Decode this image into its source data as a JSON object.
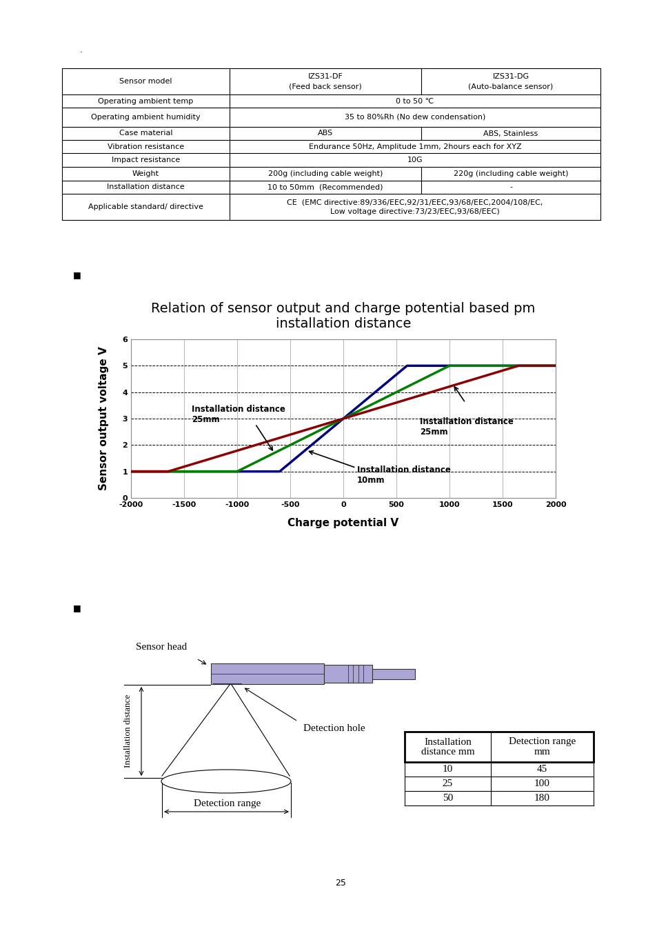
{
  "header_mark": ".",
  "spec_table": {
    "header": {
      "label": "Sensor model",
      "values": [
        "IZS31-DF\n(Feed back sensor)",
        "IZS31-DG\n(Auto-balance sensor)"
      ]
    },
    "rows": [
      {
        "label": "Operating ambient temp",
        "values": [
          "0 to 50 ℃"
        ]
      },
      {
        "label": "Operating ambient humidity",
        "values": [
          "35 to 80%Rh (No dew condensation)"
        ]
      },
      {
        "label": "Case material",
        "values": [
          "ABS",
          "ABS, Stainless"
        ]
      },
      {
        "label": "Vibration resistance",
        "values": [
          "Endurance 50Hz, Amplitude 1mm, 2hours each for XYZ"
        ]
      },
      {
        "label": "Impact resistance",
        "values": [
          "10G"
        ]
      },
      {
        "label": "Weight",
        "values": [
          "200g (including cable weight)",
          "220g (including cable weight)"
        ]
      },
      {
        "label": "Installation distance",
        "values": [
          "10 to 50mm  (Recommended)",
          "-"
        ]
      },
      {
        "label": "Applicable standard/ directive",
        "values": [
          "CE  (EMC directive:89/336/EEC,92/31/EEC,93/68/EEC,2004/108/EC,\nLow voltage directive:73/23/EEC,93/68/EEC)"
        ]
      }
    ]
  },
  "section_marks": [
    "■",
    "■"
  ],
  "chart_data": {
    "type": "line",
    "title": "Relation of sensor output and charge potential based pm\ninstallation distance",
    "x_label": "Charge potential V",
    "y_label": "Sensor output voltage V",
    "xlim": [
      -2000,
      2000
    ],
    "xticks": [
      -2000,
      -1500,
      -1000,
      -500,
      0,
      500,
      1000,
      1500,
      2000
    ],
    "ylim": [
      0,
      6
    ],
    "yticks": [
      0,
      1,
      2,
      3,
      4,
      5,
      6
    ],
    "grid": true,
    "series": [
      {
        "color": "#000080",
        "x": [
          -2000,
          -600,
          600,
          2000
        ],
        "values": [
          1,
          1,
          5,
          5
        ]
      },
      {
        "color": "#008000",
        "x": [
          -2000,
          -1000,
          1000,
          2000
        ],
        "values": [
          1,
          1,
          5,
          5
        ]
      },
      {
        "color": "#8B0000",
        "x": [
          -2000,
          -1650,
          1650,
          2000
        ],
        "values": [
          1,
          1,
          5,
          5
        ]
      }
    ],
    "annotations": [
      "Installation distance\n25mm",
      "Installation distance\n25mm",
      "Installation distance\n10mm"
    ]
  },
  "diagram": {
    "labels": {
      "sensor_head": "Sensor head",
      "detection_hole": "Detection hole",
      "installation_distance": "Installation distance",
      "detection_range": "Detection range"
    },
    "table": {
      "header": [
        "Installation\ndistance mm",
        "Detection range\nmm"
      ],
      "rows": [
        [
          10,
          45
        ],
        [
          25,
          100
        ],
        [
          50,
          180
        ]
      ]
    }
  },
  "page_number": "25"
}
